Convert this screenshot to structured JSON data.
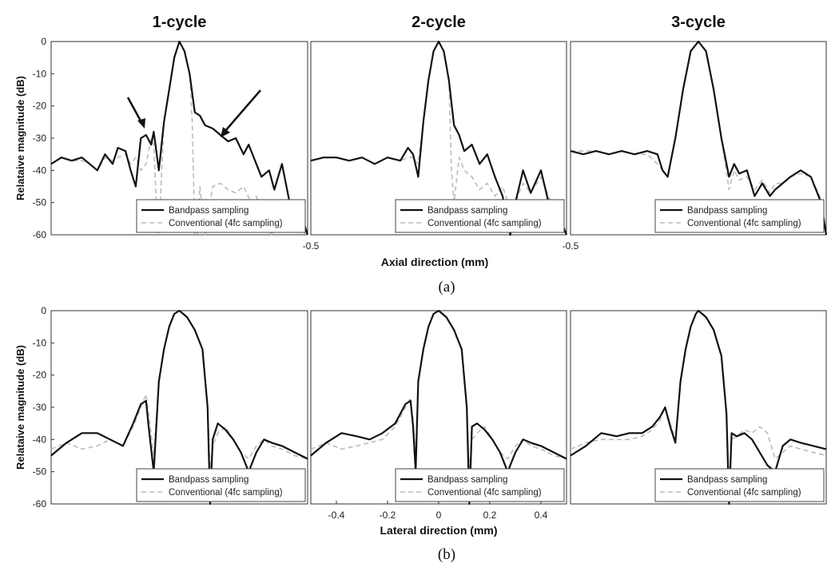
{
  "figure": {
    "label_a": "(a)",
    "label_b": "(b)"
  },
  "chart_data": [
    {
      "type": "line",
      "row": "a",
      "title": "1-cycle",
      "xlabel": "",
      "ylabel": "Relataive magnitude (dB)",
      "xlim": [
        -0.5,
        0.5
      ],
      "ylim": [
        -60,
        0
      ],
      "yticks": [
        0,
        -10,
        -20,
        -30,
        -40,
        -50,
        -60
      ],
      "xticks": [],
      "legend": "bottom-right",
      "series": [
        {
          "name": "Bandpass sampling",
          "style": "solid",
          "color": "#111111",
          "x": [
            -0.5,
            -0.46,
            -0.42,
            -0.38,
            -0.35,
            -0.32,
            -0.29,
            -0.26,
            -0.24,
            -0.21,
            -0.19,
            -0.17,
            -0.15,
            -0.13,
            -0.11,
            -0.1,
            -0.08,
            -0.06,
            -0.04,
            -0.02,
            0.0,
            0.02,
            0.04,
            0.06,
            0.08,
            0.1,
            0.13,
            0.16,
            0.19,
            0.22,
            0.25,
            0.27,
            0.3,
            0.32,
            0.35,
            0.37,
            0.4,
            0.43,
            0.46,
            0.48,
            0.5
          ],
          "y": [
            -38,
            -36,
            -37,
            -36,
            -38,
            -40,
            -35,
            -38,
            -33,
            -34,
            -40,
            -45,
            -30,
            -29,
            -32,
            -28,
            -40,
            -25,
            -15,
            -5,
            0,
            -3,
            -10,
            -22,
            -23,
            -26,
            -27,
            -29,
            -31,
            -30,
            -35,
            -32,
            -38,
            -42,
            -40,
            -46,
            -38,
            -50,
            -50,
            -55,
            -60
          ]
        },
        {
          "name": "Conventional (4fc sampling)",
          "style": "dashed",
          "color": "#bbbbbb",
          "x": [
            -0.5,
            -0.46,
            -0.42,
            -0.38,
            -0.35,
            -0.32,
            -0.29,
            -0.26,
            -0.24,
            -0.21,
            -0.19,
            -0.17,
            -0.15,
            -0.13,
            -0.11,
            -0.1,
            -0.09,
            -0.08,
            -0.06,
            -0.04,
            -0.02,
            0.0,
            0.02,
            0.04,
            0.05,
            0.06,
            0.07,
            0.08,
            0.1,
            0.13,
            0.16,
            0.19,
            0.22,
            0.25,
            0.28,
            0.3,
            0.33,
            0.36,
            0.4,
            0.45,
            0.5
          ],
          "y": [
            -38,
            -36,
            -37,
            -37,
            -38,
            -40,
            -36,
            -37,
            -36,
            -35,
            -38,
            -36,
            -40,
            -38,
            -30,
            -32,
            -50,
            -60,
            -25,
            -15,
            -5,
            0,
            -3,
            -10,
            -25,
            -60,
            -60,
            -45,
            -60,
            -45,
            -44,
            -46,
            -47,
            -45,
            -50,
            -48,
            -55,
            -60,
            -55,
            -58,
            -60
          ]
        }
      ]
    },
    {
      "type": "line",
      "row": "a",
      "title": "2-cycle",
      "xlabel": "",
      "ylabel": "",
      "xlim": [
        -0.5,
        0.5
      ],
      "ylim": [
        -60,
        0
      ],
      "yticks": [],
      "xticks": [
        -0.5
      ],
      "legend": "bottom-right",
      "series": [
        {
          "name": "Bandpass sampling",
          "style": "solid",
          "color": "#111111",
          "x": [
            -0.5,
            -0.45,
            -0.4,
            -0.35,
            -0.3,
            -0.25,
            -0.2,
            -0.15,
            -0.12,
            -0.1,
            -0.08,
            -0.06,
            -0.04,
            -0.02,
            0.0,
            0.02,
            0.04,
            0.06,
            0.08,
            0.1,
            0.13,
            0.16,
            0.19,
            0.22,
            0.25,
            0.28,
            0.3,
            0.33,
            0.36,
            0.4,
            0.43,
            0.46,
            0.5
          ],
          "y": [
            -37,
            -36,
            -36,
            -37,
            -36,
            -38,
            -36,
            -37,
            -33,
            -35,
            -42,
            -25,
            -12,
            -3,
            0,
            -3,
            -12,
            -26,
            -29,
            -34,
            -32,
            -38,
            -35,
            -42,
            -48,
            -60,
            -50,
            -40,
            -47,
            -40,
            -50,
            -52,
            -60
          ]
        },
        {
          "name": "Conventional (4fc sampling)",
          "style": "dashed",
          "color": "#bbbbbb",
          "x": [
            -0.5,
            -0.45,
            -0.4,
            -0.35,
            -0.3,
            -0.25,
            -0.2,
            -0.15,
            -0.12,
            -0.1,
            -0.08,
            -0.06,
            -0.04,
            -0.02,
            0.0,
            0.02,
            0.04,
            0.05,
            0.06,
            0.08,
            0.1,
            0.13,
            0.16,
            0.19,
            0.22,
            0.25,
            0.28,
            0.3,
            0.33,
            0.36,
            0.4,
            0.43,
            0.46,
            0.5
          ],
          "y": [
            -37,
            -36,
            -36,
            -37,
            -36,
            -38,
            -36,
            -37,
            -36,
            -36,
            -38,
            -25,
            -12,
            -3,
            0,
            -3,
            -12,
            -40,
            -50,
            -36,
            -40,
            -42,
            -46,
            -44,
            -48,
            -45,
            -52,
            -50,
            -44,
            -47,
            -42,
            -48,
            -55,
            -60
          ]
        }
      ]
    },
    {
      "type": "line",
      "row": "a",
      "title": "3-cycle",
      "xlabel": "",
      "ylabel": "",
      "xlim": [
        -0.5,
        0.5
      ],
      "ylim": [
        -60,
        0
      ],
      "yticks": [],
      "xticks": [
        -0.5
      ],
      "legend": "bottom-right",
      "series": [
        {
          "name": "Bandpass sampling",
          "style": "solid",
          "color": "#111111",
          "x": [
            -0.5,
            -0.45,
            -0.4,
            -0.35,
            -0.3,
            -0.25,
            -0.2,
            -0.16,
            -0.14,
            -0.12,
            -0.09,
            -0.06,
            -0.03,
            0.0,
            0.03,
            0.06,
            0.09,
            0.12,
            0.14,
            0.16,
            0.19,
            0.22,
            0.25,
            0.28,
            0.3,
            0.33,
            0.36,
            0.4,
            0.44,
            0.48,
            0.5
          ],
          "y": [
            -34,
            -35,
            -34,
            -35,
            -34,
            -35,
            -34,
            -35,
            -40,
            -42,
            -30,
            -15,
            -3,
            0,
            -3,
            -15,
            -30,
            -42,
            -38,
            -41,
            -40,
            -48,
            -44,
            -48,
            -46,
            -44,
            -42,
            -40,
            -42,
            -50,
            -60
          ]
        },
        {
          "name": "Conventional (4fc sampling)",
          "style": "dashed",
          "color": "#bbbbbb",
          "x": [
            -0.5,
            -0.45,
            -0.4,
            -0.35,
            -0.3,
            -0.25,
            -0.2,
            -0.16,
            -0.14,
            -0.12,
            -0.09,
            -0.06,
            -0.03,
            0.0,
            0.03,
            0.06,
            0.09,
            0.12,
            0.14,
            0.16,
            0.19,
            0.22,
            0.25,
            0.28,
            0.3,
            0.33,
            0.36,
            0.4,
            0.44,
            0.48,
            0.5
          ],
          "y": [
            -34,
            -34,
            -34,
            -35,
            -34,
            -35,
            -35,
            -38,
            -40,
            -42,
            -30,
            -15,
            -3,
            0,
            -3,
            -15,
            -30,
            -46,
            -40,
            -43,
            -42,
            -46,
            -43,
            -47,
            -44,
            -44,
            -42,
            -41,
            -42,
            -49,
            -60
          ]
        }
      ]
    },
    {
      "type": "line",
      "row": "b",
      "title": "",
      "xlabel": "",
      "ylabel": "Relataive magnitude (dB)",
      "xlim": [
        -0.5,
        0.5
      ],
      "ylim": [
        -60,
        0
      ],
      "yticks": [
        0,
        -10,
        -20,
        -30,
        -40,
        -50,
        -60
      ],
      "xticks": [],
      "legend": "bottom-right",
      "series": [
        {
          "name": "Bandpass sampling",
          "style": "solid",
          "color": "#111111",
          "x": [
            -0.5,
            -0.44,
            -0.38,
            -0.32,
            -0.27,
            -0.22,
            -0.18,
            -0.15,
            -0.13,
            -0.12,
            -0.1,
            -0.08,
            -0.06,
            -0.04,
            -0.02,
            0.0,
            0.03,
            0.06,
            0.09,
            0.11,
            0.12,
            0.13,
            0.15,
            0.18,
            0.21,
            0.24,
            0.27,
            0.3,
            0.33,
            0.36,
            0.4,
            0.45,
            0.5
          ],
          "y": [
            -45,
            -41,
            -38,
            -38,
            -40,
            -42,
            -35,
            -29,
            -28,
            -36,
            -50,
            -22,
            -12,
            -5,
            -1,
            0,
            -2,
            -6,
            -12,
            -30,
            -60,
            -40,
            -35,
            -37,
            -40,
            -44,
            -50,
            -44,
            -40,
            -41,
            -42,
            -44,
            -46
          ]
        },
        {
          "name": "Conventional (4fc sampling)",
          "style": "dashed",
          "color": "#bbbbbb",
          "x": [
            -0.5,
            -0.44,
            -0.38,
            -0.32,
            -0.27,
            -0.22,
            -0.18,
            -0.15,
            -0.13,
            -0.12,
            -0.1,
            -0.08,
            -0.06,
            -0.04,
            -0.02,
            0.0,
            0.03,
            0.06,
            0.09,
            0.11,
            0.12,
            0.13,
            0.15,
            0.18,
            0.21,
            0.24,
            0.27,
            0.3,
            0.33,
            0.36,
            0.4,
            0.45,
            0.5
          ],
          "y": [
            -43,
            -41,
            -43,
            -42,
            -40,
            -42,
            -36,
            -30,
            -26,
            -32,
            -45,
            -22,
            -12,
            -5,
            -1,
            0,
            -2,
            -6,
            -12,
            -30,
            -50,
            -42,
            -38,
            -36,
            -40,
            -44,
            -46,
            -42,
            -40,
            -42,
            -43,
            -45,
            -46
          ]
        }
      ]
    },
    {
      "type": "line",
      "row": "b",
      "title": "",
      "xlabel": "Lateral direction (mm)",
      "ylabel": "",
      "xlim": [
        -0.5,
        0.5
      ],
      "ylim": [
        -60,
        0
      ],
      "yticks": [],
      "xticks": [
        -0.4,
        -0.2,
        0,
        0.2,
        0.4
      ],
      "legend": "bottom-right",
      "series": [
        {
          "name": "Bandpass sampling",
          "style": "solid",
          "color": "#111111",
          "x": [
            -0.5,
            -0.44,
            -0.38,
            -0.32,
            -0.27,
            -0.22,
            -0.17,
            -0.13,
            -0.11,
            -0.1,
            -0.09,
            -0.08,
            -0.06,
            -0.04,
            -0.02,
            0.0,
            0.03,
            0.06,
            0.09,
            0.11,
            0.12,
            0.13,
            0.15,
            0.18,
            0.21,
            0.24,
            0.27,
            0.3,
            0.33,
            0.36,
            0.4,
            0.45,
            0.5
          ],
          "y": [
            -45,
            -41,
            -38,
            -39,
            -40,
            -38,
            -35,
            -29,
            -28,
            -36,
            -50,
            -22,
            -12,
            -5,
            -1,
            0,
            -2,
            -6,
            -12,
            -30,
            -60,
            -36,
            -35,
            -37,
            -40,
            -44,
            -50,
            -44,
            -40,
            -41,
            -42,
            -44,
            -46
          ]
        },
        {
          "name": "Conventional (4fc sampling)",
          "style": "dashed",
          "color": "#bbbbbb",
          "x": [
            -0.5,
            -0.44,
            -0.38,
            -0.32,
            -0.27,
            -0.22,
            -0.17,
            -0.13,
            -0.11,
            -0.1,
            -0.09,
            -0.08,
            -0.06,
            -0.04,
            -0.02,
            0.0,
            0.03,
            0.06,
            0.09,
            0.11,
            0.12,
            0.13,
            0.15,
            0.18,
            0.21,
            0.24,
            0.27,
            0.3,
            0.33,
            0.36,
            0.4,
            0.45,
            0.5
          ],
          "y": [
            -43,
            -41,
            -43,
            -42,
            -41,
            -40,
            -36,
            -30,
            -27,
            -34,
            -45,
            -22,
            -12,
            -5,
            -1,
            0,
            -2,
            -6,
            -12,
            -30,
            -50,
            -40,
            -38,
            -36,
            -40,
            -44,
            -46,
            -42,
            -40,
            -42,
            -43,
            -45,
            -46
          ]
        }
      ]
    },
    {
      "type": "line",
      "row": "b",
      "title": "",
      "xlabel": "",
      "ylabel": "",
      "xlim": [
        -0.5,
        0.5
      ],
      "ylim": [
        -60,
        0
      ],
      "yticks": [],
      "xticks": [],
      "legend": "bottom-right",
      "series": [
        {
          "name": "Bandpass sampling",
          "style": "solid",
          "color": "#111111",
          "x": [
            -0.5,
            -0.44,
            -0.38,
            -0.32,
            -0.27,
            -0.22,
            -0.18,
            -0.15,
            -0.13,
            -0.11,
            -0.09,
            -0.07,
            -0.05,
            -0.03,
            -0.01,
            0.0,
            0.03,
            0.06,
            0.09,
            0.11,
            0.12,
            0.13,
            0.15,
            0.18,
            0.21,
            0.24,
            0.27,
            0.3,
            0.33,
            0.36,
            0.4,
            0.45,
            0.5
          ],
          "y": [
            -45,
            -42,
            -38,
            -39,
            -38,
            -38,
            -36,
            -33,
            -30,
            -36,
            -41,
            -22,
            -12,
            -5,
            -1,
            0,
            -2,
            -6,
            -14,
            -32,
            -60,
            -38,
            -39,
            -38,
            -40,
            -44,
            -48,
            -50,
            -42,
            -40,
            -41,
            -42,
            -43
          ]
        },
        {
          "name": "Conventional (4fc sampling)",
          "style": "dashed",
          "color": "#bbbbbb",
          "x": [
            -0.5,
            -0.44,
            -0.38,
            -0.32,
            -0.27,
            -0.22,
            -0.18,
            -0.15,
            -0.13,
            -0.11,
            -0.09,
            -0.07,
            -0.05,
            -0.03,
            -0.01,
            0.0,
            0.03,
            0.06,
            0.09,
            0.11,
            0.12,
            0.13,
            0.15,
            0.18,
            0.21,
            0.24,
            0.27,
            0.3,
            0.33,
            0.36,
            0.4,
            0.45,
            0.5
          ],
          "y": [
            -43,
            -41,
            -40,
            -40,
            -40,
            -39,
            -37,
            -34,
            -30,
            -35,
            -40,
            -22,
            -12,
            -5,
            -1,
            0,
            -2,
            -6,
            -14,
            -32,
            -55,
            -40,
            -39,
            -37,
            -38,
            -36,
            -38,
            -46,
            -44,
            -42,
            -43,
            -44,
            -45
          ]
        }
      ]
    }
  ],
  "shared": {
    "xlabel_a": "Axial direction (mm)",
    "a_between_ticks": [
      "-0.5",
      "0.5"
    ]
  }
}
